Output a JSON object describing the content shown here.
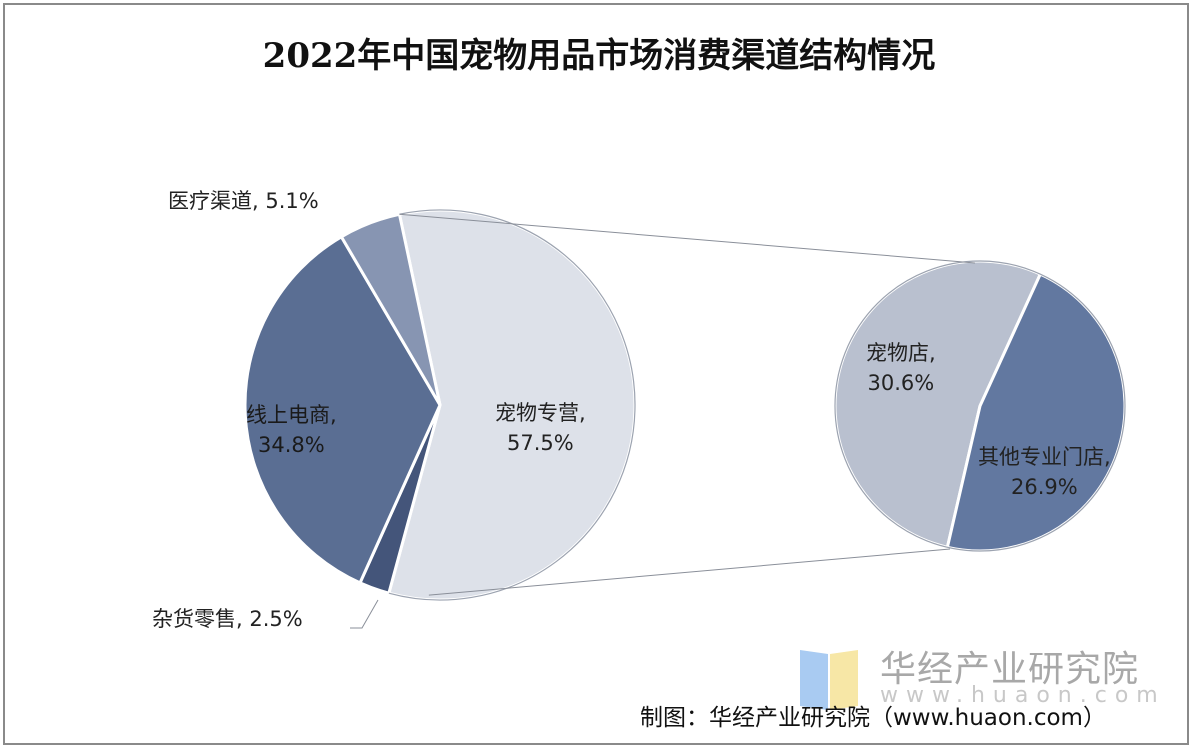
{
  "chart_data": {
    "type": "pie-of-pie",
    "title": "2022年中国宠物用品市场消费渠道结构情况",
    "main_pie": {
      "slices": [
        {
          "label": "宠物专营",
          "value": 57.5,
          "display": "57.5%",
          "color": "#dde1e9"
        },
        {
          "label": "杂货零售",
          "value": 2.5,
          "display": "2.5%",
          "color": "#44557a"
        },
        {
          "label": "线上电商",
          "value": 34.8,
          "display": "34.8%",
          "color": "#5a6e93"
        },
        {
          "label": "医疗渠道",
          "value": 5.1,
          "display": "5.1%",
          "color": "#8795b2"
        }
      ]
    },
    "secondary_pie": {
      "breakdown_of": "宠物专营",
      "slices": [
        {
          "label": "宠物店",
          "value": 30.6,
          "display": "30.6%",
          "color": "#b9c0cf"
        },
        {
          "label": "其他专业门店",
          "value": 26.9,
          "display": "26.9%",
          "color": "#6278a0"
        }
      ]
    }
  },
  "watermark": {
    "name": "华经产业研究院",
    "url": "www.huaon.com"
  },
  "source": "制图：华经产业研究院（www.huaon.com）"
}
